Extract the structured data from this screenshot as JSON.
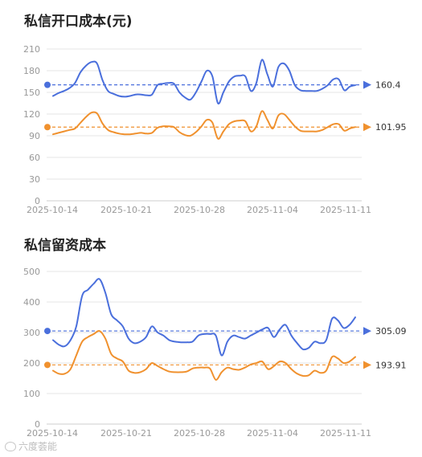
{
  "colors": {
    "blue": "#4a6fdc",
    "orange": "#f0912e",
    "grid": "#e6e6e6",
    "axis": "#999999"
  },
  "chart_data": [
    {
      "type": "line",
      "title": "私信开口成本(元)",
      "x_ticks": [
        "2025-10-14",
        "2025-10-21",
        "2025-10-28",
        "2025-11-04",
        "2025-11-11"
      ],
      "ylim": [
        0,
        210
      ],
      "y_ticks": [
        0,
        30,
        60,
        90,
        120,
        150,
        180,
        210
      ],
      "grid": true,
      "series": [
        {
          "color": "#4a6fdc",
          "values": [
            145,
            149,
            152,
            156,
            163,
            178,
            187,
            192,
            190,
            167,
            152,
            148,
            145,
            144,
            145,
            147,
            147,
            146,
            147,
            160,
            162,
            163,
            162,
            150,
            143,
            140,
            150,
            165,
            180,
            172,
            135,
            150,
            165,
            172,
            173,
            172,
            152,
            163,
            195,
            175,
            158,
            185,
            190,
            180,
            160,
            153,
            152,
            152,
            152,
            155,
            160,
            168,
            168,
            153,
            158,
            160
          ],
          "reference": 160.4,
          "reference_label": "160.4"
        },
        {
          "color": "#f0912e",
          "values": [
            92,
            94,
            96,
            98,
            100,
            108,
            116,
            122,
            121,
            107,
            98,
            95,
            93,
            92,
            92,
            93,
            94,
            93,
            94,
            101,
            103,
            103,
            102,
            95,
            91,
            90,
            95,
            103,
            112,
            108,
            86,
            96,
            106,
            110,
            111,
            110,
            96,
            103,
            124,
            112,
            100,
            118,
            120,
            112,
            103,
            97,
            96,
            96,
            96,
            98,
            102,
            106,
            106,
            97,
            100,
            102
          ],
          "reference": 101.95,
          "reference_label": "101.95"
        }
      ]
    },
    {
      "type": "line",
      "title": "私信留资成本",
      "x_ticks": [
        "2025-10-14",
        "2025-10-21",
        "2025-10-28",
        "2025-11-04",
        "2025-11-11"
      ],
      "ylim": [
        0,
        500
      ],
      "y_ticks": [
        0,
        100,
        200,
        300,
        400,
        500
      ],
      "grid": true,
      "series": [
        {
          "color": "#4a6fdc",
          "values": [
            275,
            260,
            255,
            275,
            320,
            420,
            440,
            460,
            475,
            430,
            360,
            340,
            320,
            280,
            265,
            270,
            285,
            320,
            300,
            290,
            275,
            270,
            268,
            268,
            270,
            290,
            295,
            295,
            290,
            225,
            270,
            290,
            285,
            280,
            290,
            300,
            310,
            315,
            285,
            310,
            325,
            290,
            265,
            245,
            250,
            270,
            265,
            275,
            345,
            340,
            315,
            325,
            350
          ],
          "reference": 305.09,
          "reference_label": "305.09"
        },
        {
          "color": "#f0912e",
          "values": [
            175,
            165,
            165,
            180,
            225,
            270,
            285,
            295,
            305,
            280,
            230,
            215,
            205,
            175,
            168,
            170,
            180,
            200,
            190,
            180,
            172,
            170,
            170,
            172,
            182,
            185,
            185,
            182,
            145,
            170,
            185,
            180,
            178,
            185,
            195,
            200,
            205,
            180,
            190,
            205,
            200,
            180,
            165,
            158,
            160,
            175,
            168,
            175,
            220,
            215,
            200,
            205,
            220
          ],
          "reference": 193.91,
          "reference_label": "193.91"
        }
      ]
    }
  ],
  "watermark": {
    "text": "六度荟能"
  }
}
